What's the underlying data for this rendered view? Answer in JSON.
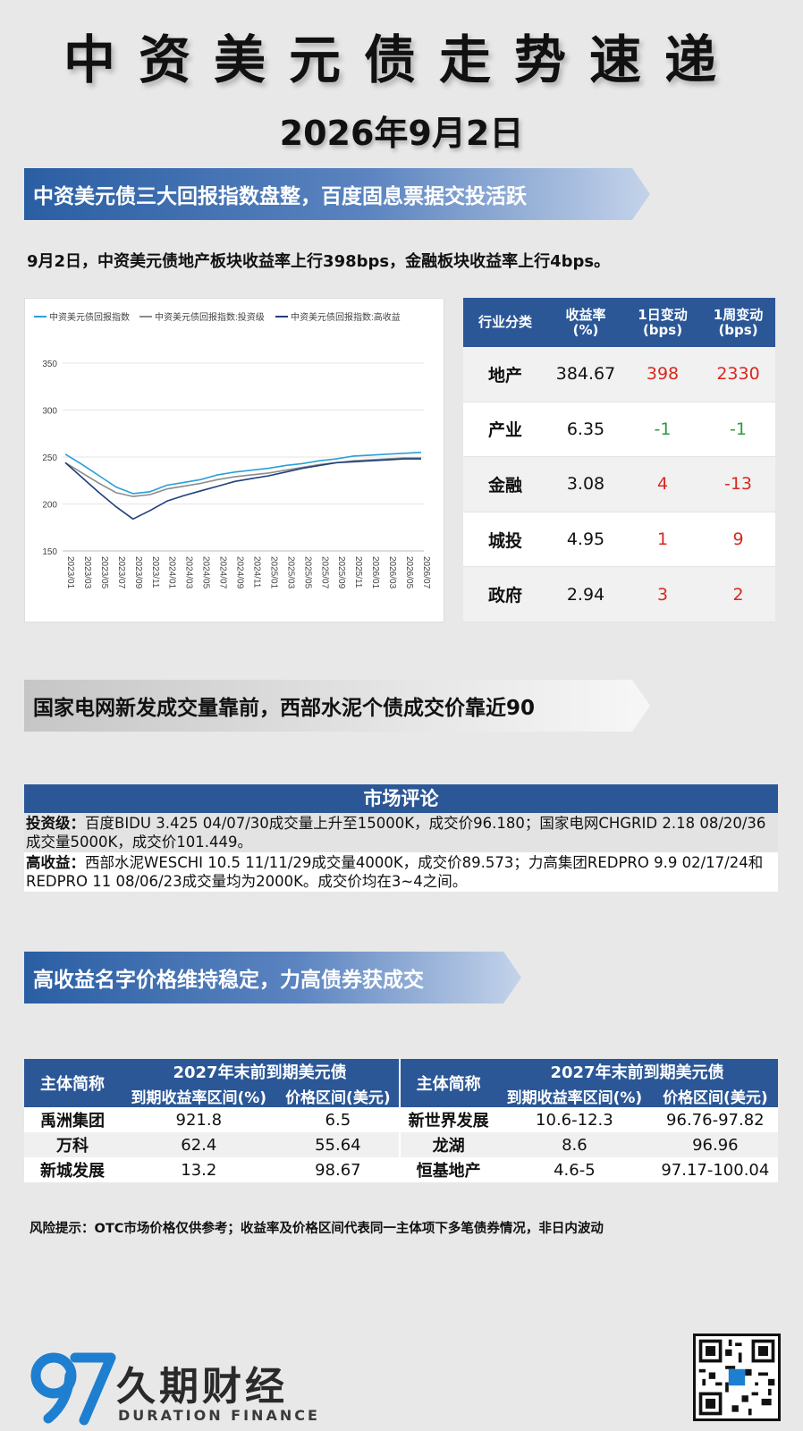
{
  "header": {
    "title": "中资美元债走势速递",
    "date": "2026年9月2日"
  },
  "section1": {
    "banner": "中资美元债三大回报指数盘整，百度固息票据交投活跃",
    "summary": "9月2日，中资美元债地产板块收益率上行398bps，金融板块收益率上行4bps。"
  },
  "chart_data": {
    "type": "line",
    "x": [
      "2023/01",
      "2023/03",
      "2023/05",
      "2023/07",
      "2023/09",
      "2023/11",
      "2024/01",
      "2024/03",
      "2024/05",
      "2024/07",
      "2024/09",
      "2024/11",
      "2025/01",
      "2025/03",
      "2025/05",
      "2025/07",
      "2025/09",
      "2025/11",
      "2026/01",
      "2026/03",
      "2026/05",
      "2026/07"
    ],
    "ylim": [
      150,
      350
    ],
    "yticks": [
      150,
      200,
      250,
      300,
      350
    ],
    "series": [
      {
        "name": "中资美元债回报指数",
        "color": "#2a9fd6",
        "values": [
          253,
          242,
          230,
          218,
          211,
          213,
          220,
          223,
          226,
          231,
          234,
          236,
          238,
          241,
          243,
          246,
          248,
          251,
          252,
          253,
          254,
          255
        ]
      },
      {
        "name": "中资美元债回报指数:投资级",
        "color": "#8c8c8c",
        "values": [
          244,
          233,
          222,
          212,
          208,
          210,
          216,
          219,
          222,
          226,
          229,
          231,
          233,
          236,
          239,
          242,
          244,
          246,
          247,
          248,
          249,
          249
        ]
      },
      {
        "name": "中资美元债回报指数:高收益",
        "color": "#1f3f7a",
        "values": [
          244,
          228,
          212,
          197,
          184,
          193,
          203,
          209,
          214,
          219,
          224,
          227,
          230,
          234,
          238,
          241,
          244,
          245,
          246,
          247,
          248,
          248
        ]
      }
    ],
    "legend": "top"
  },
  "table1": {
    "headers": [
      "行业分类",
      "收益率\n(%)",
      "1日变动\n(bps)",
      "1周变动\n(bps)"
    ],
    "header_lines": [
      [
        "行业分类"
      ],
      [
        "收益率",
        "(%)"
      ],
      [
        "1日变动",
        "(bps)"
      ],
      [
        "1周变动",
        "(bps)"
      ]
    ],
    "rows": [
      {
        "sector": "地产",
        "yield": "384.67",
        "d1": "398",
        "w1": "2330",
        "d1_color": "red",
        "w1_color": "red"
      },
      {
        "sector": "产业",
        "yield": "6.35",
        "d1": "-1",
        "w1": "-1",
        "d1_color": "green",
        "w1_color": "green"
      },
      {
        "sector": "金融",
        "yield": "3.08",
        "d1": "4",
        "w1": "-13",
        "d1_color": "red",
        "w1_color": "red"
      },
      {
        "sector": "城投",
        "yield": "4.95",
        "d1": "1",
        "w1": "9",
        "d1_color": "red",
        "w1_color": "red"
      },
      {
        "sector": "政府",
        "yield": "2.94",
        "d1": "3",
        "w1": "2",
        "d1_color": "red",
        "w1_color": "red"
      }
    ]
  },
  "section2": {
    "banner": "国家电网新发成交量靠前，西部水泥个债成交价靠近90",
    "comment_title": "市场评论",
    "ig_label": "投资级：",
    "ig_text": "百度BIDU 3.425 04/07/30成交量上升至15000K，成交价96.180；国家电网CHGRID 2.18 08/20/36成交量5000K，成交价101.449。",
    "hy_label": "高收益：",
    "hy_text": "西部水泥WESCHI 10.5 11/11/29成交量4000K，成交价89.573；力高集团REDPRO 9.9 02/17/24和REDPRO 11 08/06/23成交量均为2000K。成交价均在3~4之间。"
  },
  "section3": {
    "banner": "高收益名字价格维持稳定，力高债券获成交",
    "col_name": "主体简称",
    "col_group": "2027年末前到期美元债",
    "col_yield": "到期收益率区间(%)",
    "col_price": "价格区间(美元)",
    "left": [
      {
        "name": "禹洲集团",
        "yield": "921.8",
        "price": "6.5"
      },
      {
        "name": "万科",
        "yield": "62.4",
        "price": "55.64"
      },
      {
        "name": "新城发展",
        "yield": "13.2",
        "price": "98.67"
      }
    ],
    "right": [
      {
        "name": "新世界发展",
        "yield": "10.6-12.3",
        "price": "96.76-97.82"
      },
      {
        "name": "龙湖",
        "yield": "8.6",
        "price": "96.96"
      },
      {
        "name": "恒基地产",
        "yield": "4.6-5",
        "price": "97.17-100.04"
      }
    ]
  },
  "footer": {
    "risk": "风险提示：OTC市场价格仅供参考；收益率及价格区间代表同一主体项下多笔债券情况，非日内波动",
    "logo_cn": "久期财经",
    "logo_en": "DURATION FINANCE"
  },
  "colors": {
    "brand_blue": "#2b5797",
    "up": "#d9281d",
    "down": "#2e9a45"
  }
}
